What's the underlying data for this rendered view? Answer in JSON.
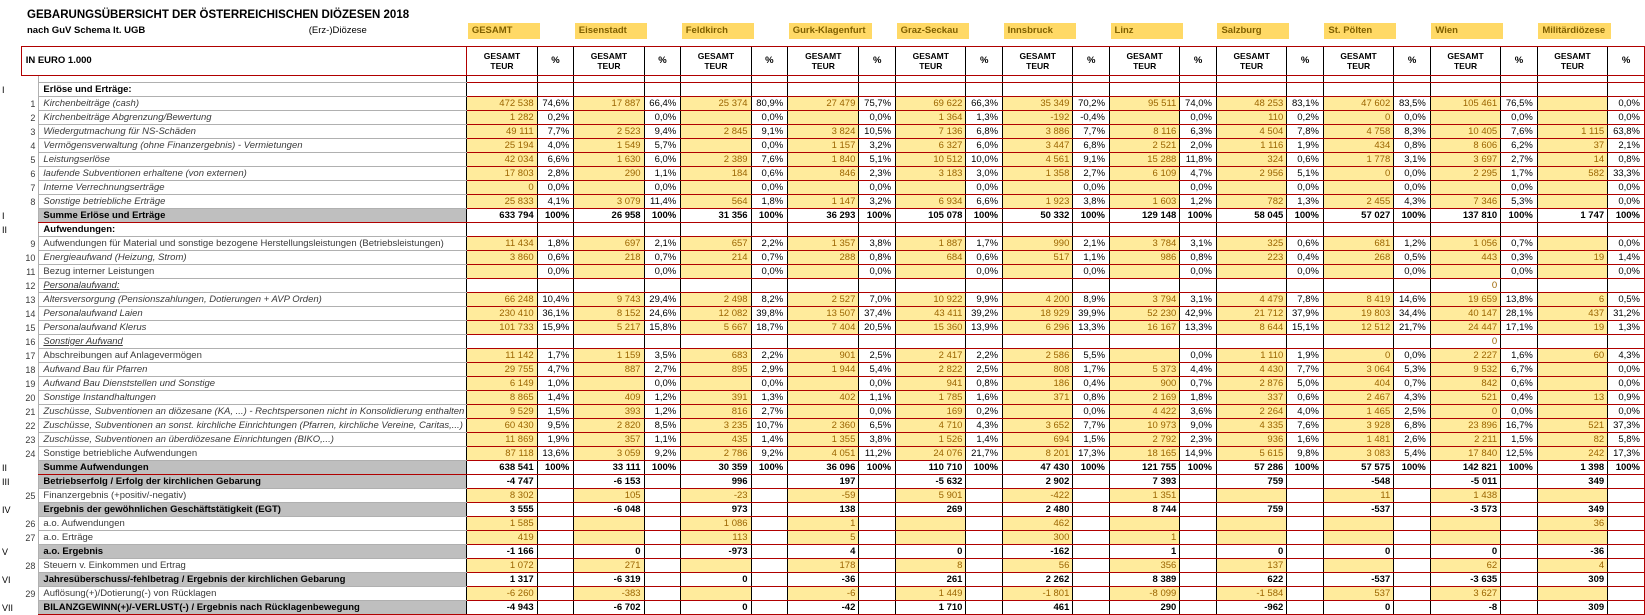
{
  "header": {
    "title": "GEBARUNGSÜBERSICHT DER ÖSTERREICHISCHEN DIÖZESEN 2018",
    "schema_label": "nach GuV Schema lt. UGB",
    "dioezese_label": "(Erz-)Diözese",
    "unit_label": "IN EURO 1.000",
    "value_col_header": [
      "GESAMT",
      "TEUR"
    ],
    "pct_col_header": "%"
  },
  "colors": {
    "highlight_bg": "#FFD966",
    "value_cell_bg": "#FFEB9C",
    "value_cell_text": "#9C6500",
    "grid_line_red": "#B00000",
    "summary_label_bg": "#BFBFBF"
  },
  "dioceses": [
    "GESAMT",
    "Eisenstadt",
    "Feldkirch",
    "Gurk-Klagenfurt",
    "Graz-Seckau",
    "Innsbruck",
    "Linz",
    "Salzburg",
    "St. Pölten",
    "Wien",
    "Militärdiözese"
  ],
  "rows": [
    {
      "type": "spacer"
    },
    {
      "type": "section",
      "roman": "I",
      "label": "Erlöse und Erträge:"
    },
    {
      "type": "data",
      "num": "1",
      "style": "italic",
      "label": "Kirchenbeiträge (cash)",
      "values": [
        "472 538",
        "17 887",
        "25 374",
        "27 479",
        "69 622",
        "35 349",
        "95 511",
        "48 253",
        "47 602",
        "105 461",
        ""
      ],
      "pcts": [
        "74,6%",
        "66,4%",
        "80,9%",
        "75,7%",
        "66,3%",
        "70,2%",
        "74,0%",
        "83,1%",
        "83,5%",
        "76,5%",
        "0,0%"
      ]
    },
    {
      "type": "data",
      "num": "2",
      "style": "italic",
      "label": "Kirchenbeiträge Abgrenzung/Bewertung",
      "values": [
        "1 282",
        "",
        "",
        "",
        "1 364",
        "-192",
        "",
        "110",
        "0",
        "",
        ""
      ],
      "pcts": [
        "0,2%",
        "0,0%",
        "0,0%",
        "0,0%",
        "1,3%",
        "-0,4%",
        "0,0%",
        "0,2%",
        "0,0%",
        "0,0%",
        "0,0%"
      ]
    },
    {
      "type": "data",
      "num": "3",
      "style": "italic",
      "label": "Wiedergutmachung für NS-Schäden",
      "values": [
        "49 111",
        "2 523",
        "2 845",
        "3 824",
        "7 136",
        "3 886",
        "8 116",
        "4 504",
        "4 758",
        "10 405",
        "1 115"
      ],
      "pcts": [
        "7,7%",
        "9,4%",
        "9,1%",
        "10,5%",
        "6,8%",
        "7,7%",
        "6,3%",
        "7,8%",
        "8,3%",
        "7,6%",
        "63,8%"
      ]
    },
    {
      "type": "data",
      "num": "4",
      "style": "italic",
      "label": "Vermögensverwaltung (ohne Finanzergebnis) - Vermietungen",
      "values": [
        "25 194",
        "1 549",
        "",
        "1 157",
        "6 327",
        "3 447",
        "2 521",
        "1 116",
        "434",
        "8 606",
        "37"
      ],
      "pcts": [
        "4,0%",
        "5,7%",
        "0,0%",
        "3,2%",
        "6,0%",
        "6,8%",
        "2,0%",
        "1,9%",
        "0,8%",
        "6,2%",
        "2,1%"
      ]
    },
    {
      "type": "data",
      "num": "5",
      "style": "italic",
      "label": "Leistungserlöse",
      "values": [
        "42 034",
        "1 630",
        "2 389",
        "1 840",
        "10 512",
        "4 561",
        "15 288",
        "324",
        "1 778",
        "3 697",
        "14"
      ],
      "pcts": [
        "6,6%",
        "6,0%",
        "7,6%",
        "5,1%",
        "10,0%",
        "9,1%",
        "11,8%",
        "0,6%",
        "3,1%",
        "2,7%",
        "0,8%"
      ]
    },
    {
      "type": "data",
      "num": "6",
      "style": "italic",
      "label": "laufende Subventionen erhaltene (von externen)",
      "values": [
        "17 803",
        "290",
        "184",
        "846",
        "3 183",
        "1 358",
        "6 109",
        "2 956",
        "0",
        "2 295",
        "582"
      ],
      "pcts": [
        "2,8%",
        "1,1%",
        "0,6%",
        "2,3%",
        "3,0%",
        "2,7%",
        "4,7%",
        "5,1%",
        "0,0%",
        "1,7%",
        "33,3%"
      ]
    },
    {
      "type": "data",
      "num": "7",
      "style": "italic",
      "label": "Interne Verrechnungserträge",
      "values": [
        "0",
        "",
        "",
        "",
        "",
        "",
        "",
        "",
        "",
        "",
        ""
      ],
      "pcts": [
        "0,0%",
        "0,0%",
        "0,0%",
        "0,0%",
        "0,0%",
        "0,0%",
        "0,0%",
        "0,0%",
        "0,0%",
        "0,0%",
        "0,0%"
      ]
    },
    {
      "type": "data",
      "num": "8",
      "style": "italic",
      "label": "Sonstige betriebliche Erträge",
      "values": [
        "25 833",
        "3 079",
        "564",
        "1 147",
        "6 934",
        "1 923",
        "1 603",
        "782",
        "2 455",
        "7 346",
        ""
      ],
      "pcts": [
        "4,1%",
        "11,4%",
        "1,8%",
        "3,2%",
        "6,6%",
        "3,8%",
        "1,2%",
        "1,3%",
        "4,3%",
        "5,3%",
        "0,0%"
      ]
    },
    {
      "type": "sum",
      "roman": "I",
      "label": "Summe Erlöse und Erträge",
      "values": [
        "633 794",
        "26 958",
        "31 356",
        "36 293",
        "105 078",
        "50 332",
        "129 148",
        "58 045",
        "57 027",
        "137 810",
        "1 747"
      ],
      "pcts": [
        "100%",
        "100%",
        "100%",
        "100%",
        "100%",
        "100%",
        "100%",
        "100%",
        "100%",
        "100%",
        "100%"
      ]
    },
    {
      "type": "section",
      "roman": "II",
      "label": "Aufwendungen:"
    },
    {
      "type": "data",
      "num": "9",
      "style": "plain",
      "label": "Aufwendungen für Material und sonstige bezogene Herstellungsleistungen (Betriebsleistungen)",
      "values": [
        "11 434",
        "697",
        "657",
        "1 357",
        "1 887",
        "990",
        "3 784",
        "325",
        "681",
        "1 056",
        ""
      ],
      "pcts": [
        "1,8%",
        "2,1%",
        "2,2%",
        "3,8%",
        "1,7%",
        "2,1%",
        "3,1%",
        "0,6%",
        "1,2%",
        "0,7%",
        "0,0%"
      ]
    },
    {
      "type": "data",
      "num": "10",
      "style": "italic",
      "label": "Energieaufwand (Heizung, Strom)",
      "values": [
        "3 860",
        "218",
        "214",
        "288",
        "684",
        "517",
        "986",
        "223",
        "268",
        "443",
        "19"
      ],
      "pcts": [
        "0,6%",
        "0,7%",
        "0,7%",
        "0,8%",
        "0,6%",
        "1,1%",
        "0,8%",
        "0,4%",
        "0,5%",
        "0,3%",
        "1,4%"
      ]
    },
    {
      "type": "data",
      "num": "11",
      "style": "plain",
      "label": "Bezug interner Leistungen",
      "values": [
        "",
        "",
        "",
        "",
        "",
        "",
        "",
        "",
        "",
        "",
        ""
      ],
      "pcts": [
        "0,0%",
        "0,0%",
        "0,0%",
        "0,0%",
        "0,0%",
        "0,0%",
        "0,0%",
        "0,0%",
        "0,0%",
        "0,0%",
        "0,0%"
      ]
    },
    {
      "type": "subheader",
      "num": "12",
      "style": "italic-underline",
      "label": "Personalaufwand:",
      "values": [
        "",
        "",
        "",
        "",
        "",
        "",
        "",
        "",
        "",
        "0",
        ""
      ],
      "pcts": null
    },
    {
      "type": "data",
      "num": "13",
      "style": "italic",
      "label": "Altersversorgung (Pensionszahlungen, Dotierungen + AVP Orden)",
      "values": [
        "66 248",
        "9 743",
        "2 498",
        "2 527",
        "10 922",
        "4 200",
        "3 794",
        "4 479",
        "8 419",
        "19 659",
        "6"
      ],
      "pcts": [
        "10,4%",
        "29,4%",
        "8,2%",
        "7,0%",
        "9,9%",
        "8,9%",
        "3,1%",
        "7,8%",
        "14,6%",
        "13,8%",
        "0,5%"
      ]
    },
    {
      "type": "data",
      "num": "14",
      "style": "italic",
      "label": "Personalaufwand Laien",
      "values": [
        "230 410",
        "8 152",
        "12 082",
        "13 507",
        "43 411",
        "18 929",
        "52 230",
        "21 712",
        "19 803",
        "40 147",
        "437"
      ],
      "pcts": [
        "36,1%",
        "24,6%",
        "39,8%",
        "37,4%",
        "39,2%",
        "39,9%",
        "42,9%",
        "37,9%",
        "34,4%",
        "28,1%",
        "31,2%"
      ]
    },
    {
      "type": "data",
      "num": "15",
      "style": "italic",
      "label": "Personalaufwand Klerus",
      "values": [
        "101 733",
        "5 217",
        "5 667",
        "7 404",
        "15 360",
        "6 296",
        "16 167",
        "8 644",
        "12 512",
        "24 447",
        "19"
      ],
      "pcts": [
        "15,9%",
        "15,8%",
        "18,7%",
        "20,5%",
        "13,9%",
        "13,3%",
        "13,3%",
        "15,1%",
        "21,7%",
        "17,1%",
        "1,3%"
      ]
    },
    {
      "type": "subheader",
      "num": "16",
      "style": "italic-underline",
      "label": "Sonstiger Aufwand",
      "values": [
        "",
        "",
        "",
        "",
        "",
        "",
        "",
        "",
        "",
        "0",
        ""
      ],
      "pcts": null
    },
    {
      "type": "data",
      "num": "17",
      "style": "plain",
      "label": "Abschreibungen auf Anlagevermögen",
      "values": [
        "11 142",
        "1 159",
        "683",
        "901",
        "2 417",
        "2 586",
        "",
        "1 110",
        "0",
        "2 227",
        "60"
      ],
      "pcts": [
        "1,7%",
        "3,5%",
        "2,2%",
        "2,5%",
        "2,2%",
        "5,5%",
        "0,0%",
        "1,9%",
        "0,0%",
        "1,6%",
        "4,3%"
      ]
    },
    {
      "type": "data",
      "num": "18",
      "style": "italic",
      "label": "Aufwand Bau für Pfarren",
      "values": [
        "29 755",
        "887",
        "895",
        "1 944",
        "2 822",
        "808",
        "5 373",
        "4 430",
        "3 064",
        "9 532",
        ""
      ],
      "pcts": [
        "4,7%",
        "2,7%",
        "2,9%",
        "5,4%",
        "2,5%",
        "1,7%",
        "4,4%",
        "7,7%",
        "5,3%",
        "6,7%",
        "0,0%"
      ]
    },
    {
      "type": "data",
      "num": "19",
      "style": "italic",
      "label": "Aufwand Bau Dienststellen und Sonstige",
      "values": [
        "6 149",
        "",
        "",
        "",
        "941",
        "186",
        "900",
        "2 876",
        "404",
        "842",
        ""
      ],
      "pcts": [
        "1,0%",
        "0,0%",
        "0,0%",
        "0,0%",
        "0,8%",
        "0,4%",
        "0,7%",
        "5,0%",
        "0,7%",
        "0,6%",
        "0,0%"
      ]
    },
    {
      "type": "data",
      "num": "20",
      "style": "italic",
      "label": "Sonstige Instandhaltungen",
      "values": [
        "8 865",
        "409",
        "391",
        "402",
        "1 785",
        "371",
        "2 169",
        "337",
        "2 467",
        "521",
        "13"
      ],
      "pcts": [
        "1,4%",
        "1,2%",
        "1,3%",
        "1,1%",
        "1,6%",
        "0,8%",
        "1,8%",
        "0,6%",
        "4,3%",
        "0,4%",
        "0,9%"
      ]
    },
    {
      "type": "data",
      "num": "21",
      "style": "italic",
      "label": "Zuschüsse, Subventionen an diözesane (KA, ...) - Rechtspersonen nicht in Konsolidierung enthalten",
      "values": [
        "9 529",
        "393",
        "816",
        "",
        "169",
        "",
        "4 422",
        "2 264",
        "1 465",
        "0",
        ""
      ],
      "pcts": [
        "1,5%",
        "1,2%",
        "2,7%",
        "0,0%",
        "0,2%",
        "0,0%",
        "3,6%",
        "4,0%",
        "2,5%",
        "0,0%",
        "0,0%"
      ]
    },
    {
      "type": "data",
      "num": "22",
      "style": "italic",
      "label": "Zuschüsse, Subventionen an sonst. kirchliche Einrichtungen (Pfarren, kirchliche Vereine, Caritas,...)",
      "values": [
        "60 430",
        "2 820",
        "3 235",
        "2 360",
        "4 710",
        "3 652",
        "10 973",
        "4 335",
        "3 928",
        "23 896",
        "521"
      ],
      "pcts": [
        "9,5%",
        "8,5%",
        "10,7%",
        "6,5%",
        "4,3%",
        "7,7%",
        "9,0%",
        "7,6%",
        "6,8%",
        "16,7%",
        "37,3%"
      ]
    },
    {
      "type": "data",
      "num": "23",
      "style": "italic",
      "label": "Zuschüsse, Subventionen an überdiözesane Einrichtungen (BIKO,...)",
      "values": [
        "11 869",
        "357",
        "435",
        "1 355",
        "1 526",
        "694",
        "2 792",
        "936",
        "1 481",
        "2 211",
        "82"
      ],
      "pcts": [
        "1,9%",
        "1,1%",
        "1,4%",
        "3,8%",
        "1,4%",
        "1,5%",
        "2,3%",
        "1,6%",
        "2,6%",
        "1,5%",
        "5,8%"
      ]
    },
    {
      "type": "data",
      "num": "24",
      "style": "plain",
      "label": "Sonstige betriebliche Aufwendungen",
      "values": [
        "87 118",
        "3 059",
        "2 786",
        "4 051",
        "24 076",
        "8 201",
        "18 165",
        "5 615",
        "3 083",
        "17 840",
        "242"
      ],
      "pcts": [
        "13,6%",
        "9,2%",
        "9,2%",
        "11,2%",
        "21,7%",
        "17,3%",
        "14,9%",
        "9,8%",
        "5,4%",
        "12,5%",
        "17,3%"
      ]
    },
    {
      "type": "sum",
      "roman": "II",
      "label": "Summe Aufwendungen",
      "values": [
        "638 541",
        "33 111",
        "30 359",
        "36 096",
        "110 710",
        "47 430",
        "121 755",
        "57 286",
        "57 575",
        "142 821",
        "1 398"
      ],
      "pcts": [
        "100%",
        "100%",
        "100%",
        "100%",
        "100%",
        "100%",
        "100%",
        "100%",
        "100%",
        "100%",
        "100%"
      ]
    },
    {
      "type": "result",
      "roman": "III",
      "label": "Betriebserfolg / Erfolg der kirchlichen Gebarung",
      "values": [
        "-4 747",
        "-6 153",
        "996",
        "197",
        "-5 632",
        "2 902",
        "7 393",
        "759",
        "-548",
        "-5 011",
        "349"
      ],
      "pcts": null
    },
    {
      "type": "data",
      "num": "25",
      "style": "plain",
      "label": "Finanzergebnis (+positiv/-negativ)",
      "values": [
        "8 302",
        "105",
        "-23",
        "-59",
        "5 901",
        "-422",
        "1 351",
        "",
        "11",
        "1 438",
        ""
      ],
      "pcts": null
    },
    {
      "type": "result",
      "roman": "IV",
      "label": "Ergebnis der gewöhnlichen Geschäftstätigkeit (EGT)",
      "values": [
        "3 555",
        "-6 048",
        "973",
        "138",
        "269",
        "2 480",
        "8 744",
        "759",
        "-537",
        "-3 573",
        "349"
      ],
      "pcts": null
    },
    {
      "type": "data",
      "num": "26",
      "style": "plain",
      "label": "a.o. Aufwendungen",
      "values": [
        "1 585",
        "",
        "1 086",
        "1",
        "",
        "462",
        "",
        "",
        "",
        "",
        "36"
      ],
      "pcts": null
    },
    {
      "type": "data",
      "num": "27",
      "style": "plain",
      "label": "a.o. Erträge",
      "values": [
        "419",
        "",
        "113",
        "5",
        "",
        "300",
        "1",
        "",
        "",
        "",
        ""
      ],
      "pcts": null
    },
    {
      "type": "result",
      "roman": "V",
      "label": "a.o. Ergebnis",
      "values": [
        "-1 166",
        "0",
        "-973",
        "4",
        "0",
        "-162",
        "1",
        "0",
        "0",
        "0",
        "-36"
      ],
      "pcts": null
    },
    {
      "type": "data",
      "num": "28",
      "style": "plain",
      "label": "Steuern v. Einkommen und Ertrag",
      "values": [
        "1 072",
        "271",
        "",
        "178",
        "8",
        "56",
        "356",
        "137",
        "",
        "62",
        "4"
      ],
      "pcts": null
    },
    {
      "type": "result",
      "roman": "VI",
      "label": "Jahresüberschuss/-fehlbetrag / Ergebnis der kirchlichen Gebarung",
      "values": [
        "1 317",
        "-6 319",
        "0",
        "-36",
        "261",
        "2 262",
        "8 389",
        "622",
        "-537",
        "-3 635",
        "309"
      ],
      "pcts": null
    },
    {
      "type": "data",
      "num": "29",
      "style": "plain",
      "label": "Auflösung(+)/Dotierung(-) von Rücklagen",
      "values": [
        "-6 260",
        "-383",
        "",
        "-6",
        "1 449",
        "-1 801",
        "-8 099",
        "-1 584",
        "537",
        "3 627",
        ""
      ],
      "pcts": null
    },
    {
      "type": "result",
      "roman": "VII",
      "label": "BILANZGEWINN(+)/-VERLUST(-) / Ergebnis nach Rücklagenbewegung",
      "values": [
        "-4 943",
        "-6 702",
        "0",
        "-42",
        "1 710",
        "461",
        "290",
        "-962",
        "0",
        "-8",
        "309"
      ],
      "pcts": null
    },
    {
      "type": "empty"
    },
    {
      "type": "empty"
    }
  ]
}
